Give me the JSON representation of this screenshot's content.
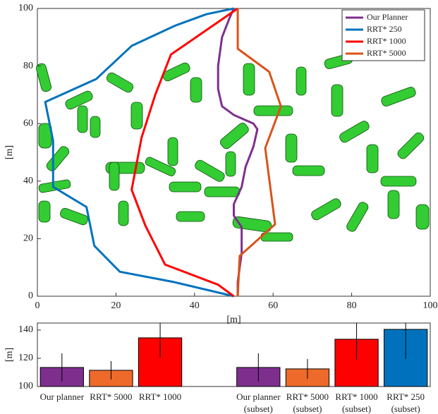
{
  "chart_data": [
    {
      "type": "line",
      "xlabel": "[m]",
      "ylabel": "[m]",
      "xlim": [
        0,
        100
      ],
      "ylim": [
        0,
        100
      ],
      "xticks": [
        0,
        20,
        40,
        60,
        80,
        100
      ],
      "yticks": [
        0,
        20,
        40,
        60,
        80,
        100
      ],
      "legend": "upper right",
      "series": [
        {
          "name": "Our Planner",
          "color": "#7e2f8e",
          "x": [
            50,
            49,
            47,
            46,
            46,
            47,
            50,
            55,
            56,
            55,
            53,
            52,
            50,
            50,
            52,
            52,
            51,
            51
          ],
          "y": [
            100,
            97,
            90,
            80,
            72,
            66,
            63,
            60,
            58,
            52,
            45,
            38,
            32,
            28,
            24,
            15,
            5,
            0
          ]
        },
        {
          "name": "RRT* 250",
          "color": "#0072bd",
          "x": [
            50,
            43,
            35,
            24,
            15,
            2,
            4,
            4,
            4,
            12.5,
            14.5,
            21,
            34.5,
            50
          ],
          "y": [
            100,
            98,
            94,
            87,
            75.5,
            67.5,
            54,
            46,
            38,
            31,
            17.5,
            8.5,
            5,
            0
          ]
        },
        {
          "name": "RRT* 1000",
          "color": "#ff0000",
          "x": [
            51,
            34,
            30,
            26.5,
            24,
            27.5,
            32.5,
            46,
            50
          ],
          "y": [
            100,
            84,
            70,
            55,
            37,
            24.5,
            11,
            4,
            0
          ]
        },
        {
          "name": "RRT* 5000",
          "color": "#d95319",
          "x": [
            51,
            51,
            59,
            62,
            58,
            60.5,
            51.5,
            51
          ],
          "y": [
            100,
            86,
            78,
            66,
            51.5,
            25,
            14,
            0
          ]
        }
      ]
    },
    {
      "type": "bar",
      "ylabel": "[m]",
      "ylim": [
        100,
        145
      ],
      "yticks": [
        100,
        120,
        140
      ],
      "categories": [
        [
          "Our planner"
        ],
        [
          "RRT* 5000"
        ],
        [
          "RRT* 1000"
        ],
        null,
        [
          "Our planner",
          "(subset)"
        ],
        [
          "RRT* 5000",
          "(subset)"
        ],
        [
          "RRT* 1000",
          "(subset)"
        ],
        [
          "RRT* 250",
          "(subset)"
        ]
      ],
      "values": [
        113.5,
        111.5,
        134.5,
        null,
        113.5,
        112.5,
        133.5,
        140.5
      ],
      "errors": [
        10,
        6.5,
        14,
        null,
        10,
        7,
        14.5,
        21
      ],
      "colors": [
        "#7e2f8e",
        "#ed6a2a",
        "#ff0000",
        null,
        "#7e2f8e",
        "#ed6a2a",
        "#ff0000",
        "#0072bd"
      ]
    }
  ]
}
